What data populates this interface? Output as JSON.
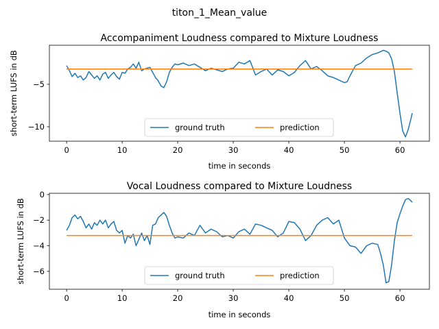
{
  "figure_title": "titon_1_Mean_value",
  "colors": {
    "ground_truth": "#1f77b4",
    "prediction": "#ff7f0e"
  },
  "chart_data": [
    {
      "type": "line",
      "title": "Accompaniment Loudness compared to Mixture Loudness",
      "xlabel": "time in seconds",
      "ylabel": "short-term LUFS in dB",
      "xlim": [
        -3.1,
        65.3
      ],
      "ylim": [
        -11.7,
        -0.4
      ],
      "xticks": [
        0,
        10,
        20,
        30,
        40,
        50,
        60
      ],
      "yticks": [
        -10,
        -5
      ],
      "grid": false,
      "legend": {
        "placement": "lower center",
        "ncol": 2
      },
      "series": [
        {
          "name": "ground truth",
          "x": [
            0,
            0.5,
            1,
            1.5,
            2,
            2.5,
            3,
            3.5,
            4,
            4.5,
            5,
            5.5,
            6,
            6.5,
            7,
            7.5,
            8,
            8.5,
            9,
            9.5,
            10,
            10.5,
            11,
            11.5,
            12,
            12.5,
            13,
            13.5,
            14,
            15,
            16,
            16.5,
            17,
            17.5,
            18,
            18.5,
            19,
            19.5,
            20,
            21,
            22,
            23,
            24,
            25,
            26,
            27,
            28,
            29,
            30,
            31,
            32,
            33,
            34,
            35,
            36,
            37,
            38,
            39,
            40,
            41,
            42,
            43,
            44,
            45,
            46,
            47,
            48,
            49,
            50,
            50.5,
            51,
            52,
            53,
            54,
            55,
            56,
            57,
            57.5,
            58,
            58.5,
            59,
            59.5,
            60,
            60.5,
            61,
            61.5,
            62,
            62.2
          ],
          "values": [
            -2.8,
            -3.4,
            -4.1,
            -3.7,
            -4.2,
            -4.0,
            -4.5,
            -4.2,
            -3.5,
            -3.9,
            -4.3,
            -4.0,
            -4.5,
            -3.8,
            -3.6,
            -4.3,
            -3.9,
            -3.6,
            -4.1,
            -4.4,
            -3.6,
            -3.7,
            -3.2,
            -3.0,
            -2.6,
            -3.1,
            -2.4,
            -3.4,
            -3.2,
            -3.0,
            -4.2,
            -4.6,
            -5.2,
            -5.4,
            -4.7,
            -3.6,
            -3.0,
            -2.6,
            -2.7,
            -2.5,
            -2.8,
            -2.6,
            -3.0,
            -3.4,
            -3.1,
            -3.3,
            -3.5,
            -3.2,
            -3.1,
            -2.4,
            -2.6,
            -2.2,
            -3.9,
            -3.5,
            -3.2,
            -3.9,
            -3.3,
            -3.5,
            -4.0,
            -3.6,
            -2.8,
            -2.2,
            -3.2,
            -2.9,
            -3.4,
            -4.0,
            -4.2,
            -4.5,
            -4.8,
            -4.7,
            -4.0,
            -2.8,
            -2.5,
            -1.9,
            -1.5,
            -1.3,
            -1.0,
            -1.1,
            -1.3,
            -2.0,
            -3.5,
            -6.0,
            -8.4,
            -10.5,
            -11.2,
            -10.3,
            -9.0,
            -8.4
          ]
        },
        {
          "name": "prediction",
          "x": [
            0,
            62.2
          ],
          "values": [
            -3.2,
            -3.2
          ]
        }
      ]
    },
    {
      "type": "line",
      "title": "Vocal Loudness compared to Mixture Loudness",
      "xlabel": "time in seconds",
      "ylabel": "short-term LUFS in dB",
      "xlim": [
        -3.1,
        65.3
      ],
      "ylim": [
        -7.4,
        0.1
      ],
      "xticks": [
        0,
        10,
        20,
        30,
        40,
        50,
        60
      ],
      "yticks": [
        -6,
        -4,
        -2,
        0
      ],
      "grid": false,
      "legend": {
        "placement": "lower center",
        "ncol": 2
      },
      "series": [
        {
          "name": "ground truth",
          "x": [
            0,
            0.5,
            1,
            1.5,
            2,
            2.5,
            3,
            3.5,
            4,
            4.5,
            5,
            5.5,
            6,
            6.5,
            7,
            7.5,
            8,
            8.5,
            9,
            9.5,
            10,
            10.5,
            11,
            11.5,
            12,
            12.5,
            13,
            13.5,
            14,
            14.5,
            15,
            15.5,
            16,
            16.5,
            17,
            17.5,
            18,
            18.5,
            19,
            19.5,
            20,
            21,
            22,
            23,
            24,
            25,
            26,
            27,
            28,
            29,
            30,
            31,
            32,
            33,
            34,
            35,
            36,
            37,
            38,
            39,
            40,
            41,
            42,
            43,
            44,
            45,
            46,
            47,
            48,
            49,
            50,
            51,
            52,
            53,
            54,
            55,
            56,
            56.5,
            57,
            57.5,
            58,
            58.5,
            59,
            59.5,
            60,
            60.5,
            61,
            61.5,
            62,
            62.2
          ],
          "values": [
            -2.8,
            -2.4,
            -1.8,
            -1.6,
            -1.9,
            -1.7,
            -2.1,
            -2.6,
            -2.3,
            -2.7,
            -2.2,
            -2.4,
            -2.0,
            -2.3,
            -2.0,
            -2.6,
            -2.3,
            -2.1,
            -2.8,
            -3.0,
            -2.8,
            -3.8,
            -3.2,
            -3.4,
            -3.1,
            -4.0,
            -3.5,
            -3.0,
            -3.6,
            -3.2,
            -3.9,
            -2.4,
            -2.3,
            -1.8,
            -1.6,
            -1.4,
            -1.7,
            -2.4,
            -3.0,
            -3.4,
            -3.3,
            -3.4,
            -3.0,
            -3.2,
            -2.4,
            -3.0,
            -2.7,
            -2.9,
            -3.3,
            -3.2,
            -3.4,
            -2.9,
            -2.7,
            -3.1,
            -2.3,
            -2.4,
            -2.6,
            -2.8,
            -3.3,
            -3.0,
            -2.1,
            -2.2,
            -2.7,
            -3.6,
            -3.2,
            -2.4,
            -2.0,
            -1.8,
            -2.3,
            -2.0,
            -3.4,
            -4.0,
            -4.1,
            -4.6,
            -4.0,
            -3.8,
            -3.9,
            -4.6,
            -5.5,
            -6.9,
            -6.8,
            -5.5,
            -3.6,
            -2.2,
            -1.5,
            -0.9,
            -0.4,
            -0.3,
            -0.5,
            -0.6
          ]
        },
        {
          "name": "prediction",
          "x": [
            0,
            62.2
          ],
          "values": [
            -3.2,
            -3.2
          ]
        }
      ]
    }
  ]
}
